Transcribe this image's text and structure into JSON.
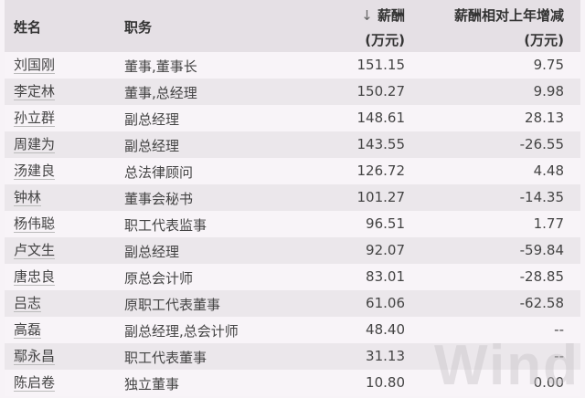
{
  "header": {
    "name": "姓名",
    "position": "职务",
    "sort_icon": "↓",
    "salary": "薪酬",
    "salary_unit": "(万元)",
    "change": "薪酬相对上年增减",
    "change_unit": "(万元)"
  },
  "rows": [
    {
      "name": "刘国刚",
      "position": "董事,董事长",
      "salary": "151.15",
      "change": "9.75"
    },
    {
      "name": "李定林",
      "position": "董事,总经理",
      "salary": "150.27",
      "change": "9.98"
    },
    {
      "name": "孙立群",
      "position": "副总经理",
      "salary": "148.61",
      "change": "28.13"
    },
    {
      "name": "周建为",
      "position": "副总经理",
      "salary": "143.55",
      "change": "-26.55"
    },
    {
      "name": "汤建良",
      "position": "总法律顾问",
      "salary": "126.72",
      "change": "4.48"
    },
    {
      "name": "钟林",
      "position": "董事会秘书",
      "salary": "101.27",
      "change": "-14.35"
    },
    {
      "name": "杨伟聪",
      "position": "职工代表监事",
      "salary": "96.51",
      "change": "1.77"
    },
    {
      "name": "卢文生",
      "position": "副总经理",
      "salary": "92.07",
      "change": "-59.84"
    },
    {
      "name": "唐忠良",
      "position": "原总会计师",
      "salary": "83.01",
      "change": "-28.85"
    },
    {
      "name": "吕志",
      "position": "原职工代表董事",
      "salary": "61.06",
      "change": "-62.58"
    },
    {
      "name": "高磊",
      "position": "副总经理,总会计师",
      "salary": "48.40",
      "change": "--"
    },
    {
      "name": "鄢永昌",
      "position": "职工代表董事",
      "salary": "31.13",
      "change": "--"
    },
    {
      "name": "陈启卷",
      "position": "独立董事",
      "salary": "10.80",
      "change": "0.00"
    }
  ],
  "watermark": "Wind"
}
